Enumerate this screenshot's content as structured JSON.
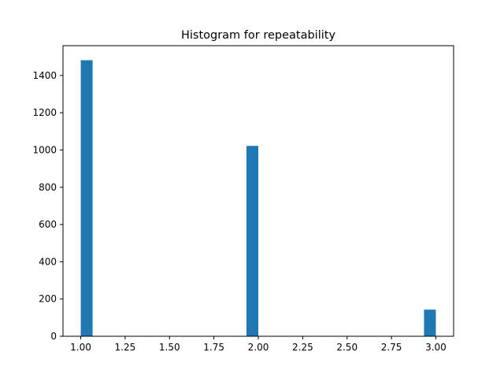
{
  "chart_data": {
    "type": "bar",
    "title": "Histogram for repeatability",
    "xlabel": "",
    "ylabel": "",
    "xlim": [
      0.9,
      3.1
    ],
    "ylim": [
      0,
      1560
    ],
    "x_ticks": [
      1.0,
      1.25,
      1.5,
      1.75,
      2.0,
      2.25,
      2.5,
      2.75,
      3.0
    ],
    "x_tick_labels": [
      "1.00",
      "1.25",
      "1.50",
      "1.75",
      "2.00",
      "2.25",
      "2.50",
      "2.75",
      "3.00"
    ],
    "y_ticks": [
      0,
      200,
      400,
      600,
      800,
      1000,
      1200,
      1400
    ],
    "y_tick_labels": [
      "0",
      "200",
      "400",
      "600",
      "800",
      "1000",
      "1200",
      "1400"
    ],
    "bin_width": 0.0667,
    "bars": [
      {
        "x_start": 1.0,
        "value": 1482
      },
      {
        "x_start": 1.9333,
        "value": 1022
      },
      {
        "x_start": 2.9333,
        "value": 143
      }
    ],
    "bar_color": "#1f77b4",
    "grid": false,
    "legend": "none"
  }
}
